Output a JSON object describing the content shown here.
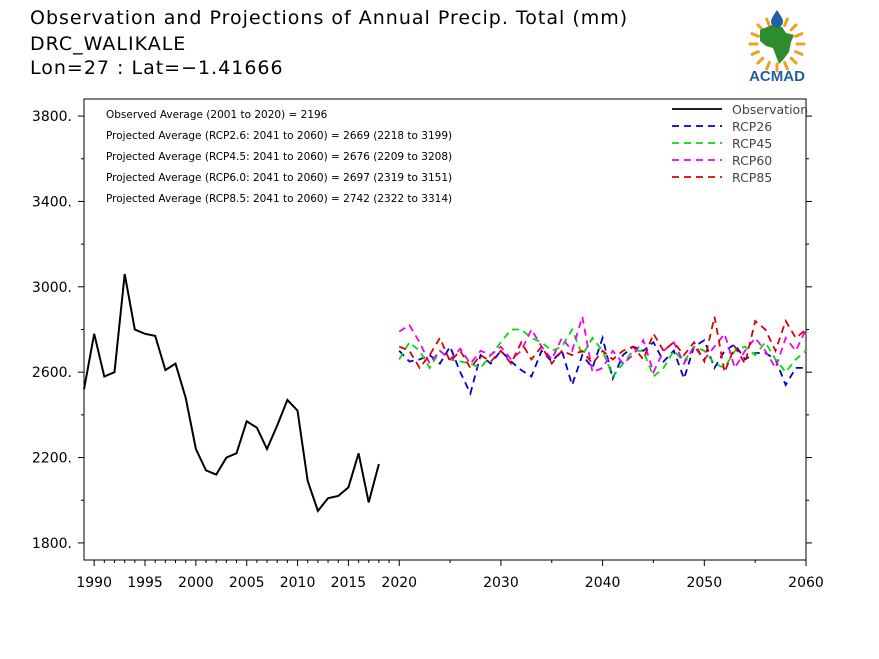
{
  "header": {
    "title": "Observation and Projections of Annual Precip. Total (mm)",
    "location": "DRC_WALIKALE",
    "coords": "Lon=27 : Lat=−1.41666"
  },
  "logo": {
    "text": "ACMAD",
    "icon": "acmad-africa-sun-logo-icon"
  },
  "colors": {
    "observation": "#000000",
    "RCP26": "#0000cc",
    "RCP45": "#00dd00",
    "RCP60": "#ee00ee",
    "RCP85": "#dd0000",
    "logo_orange": "#f0a020",
    "logo_green": "#2e8b2e",
    "logo_blue": "#1f5fa8"
  },
  "chart_data": {
    "type": "line",
    "xlim": [
      1989,
      2060
    ],
    "ylim": [
      1720,
      3880
    ],
    "x_ticks": [
      1990,
      1995,
      2000,
      2005,
      2010,
      2015,
      2020,
      2030,
      2040,
      2050,
      2060
    ],
    "y_ticks": [
      1800,
      2200,
      2600,
      3000,
      3400,
      3800
    ],
    "y_tick_labels": [
      "1800.",
      "2200.",
      "2600.",
      "3000.",
      "3400.",
      "3800."
    ],
    "grid": false,
    "legend_position": "top-right",
    "annotations": [
      "Observed Average (2001 to 2020) = 2196",
      "Projected Average (RCP2.6: 2041 to 2060) = 2669 (2218 to 3199)",
      "Projected Average (RCP4.5: 2041 to 2060) = 2676 (2209 to 3208)",
      "Projected Average (RCP6.0: 2041 to 2060) = 2697 (2319 to 3151)",
      "Projected Average (RCP8.5: 2041 to 2060) = 2742 (2322 to 3314)"
    ],
    "series": [
      {
        "name": "Observation",
        "style": "solid",
        "x": [
          1989,
          1990,
          1991,
          1992,
          1993,
          1994,
          1995,
          1996,
          1997,
          1998,
          1999,
          2000,
          2001,
          2002,
          2003,
          2004,
          2005,
          2006,
          2007,
          2008,
          2009,
          2010,
          2011,
          2012,
          2013,
          2014,
          2015,
          2016,
          2017,
          2018,
          2019
        ],
        "values": [
          2520,
          2780,
          2580,
          2600,
          3060,
          2800,
          2780,
          2770,
          2610,
          2640,
          2480,
          2240,
          2140,
          2120,
          2200,
          2220,
          2370,
          2340,
          2240,
          2350,
          2470,
          2420,
          2090,
          1950,
          2010,
          2020,
          2060,
          2220,
          1990,
          2170,
          null
        ]
      },
      {
        "name": "RCP26",
        "style": "dashed",
        "x": [
          2020,
          2021,
          2022,
          2023,
          2024,
          2025,
          2026,
          2027,
          2028,
          2029,
          2030,
          2031,
          2032,
          2033,
          2034,
          2035,
          2036,
          2037,
          2038,
          2039,
          2040,
          2041,
          2042,
          2043,
          2044,
          2045,
          2046,
          2047,
          2048,
          2049,
          2050,
          2051,
          2052,
          2053,
          2054,
          2055,
          2056,
          2057,
          2058,
          2059,
          2060
        ],
        "values": [
          2700,
          2650,
          2660,
          2680,
          2640,
          2720,
          2600,
          2500,
          2680,
          2640,
          2700,
          2650,
          2610,
          2580,
          2700,
          2650,
          2700,
          2540,
          2680,
          2620,
          2760,
          2570,
          2680,
          2720,
          2700,
          2740,
          2650,
          2700,
          2570,
          2720,
          2750,
          2620,
          2700,
          2730,
          2660,
          2690,
          2690,
          2660,
          2540,
          2620,
          2620
        ]
      },
      {
        "name": "RCP45",
        "style": "dashed",
        "x": [
          2020,
          2021,
          2022,
          2023,
          2024,
          2025,
          2026,
          2027,
          2028,
          2029,
          2030,
          2031,
          2032,
          2033,
          2034,
          2035,
          2036,
          2037,
          2038,
          2039,
          2040,
          2041,
          2042,
          2043,
          2044,
          2045,
          2046,
          2047,
          2048,
          2049,
          2050,
          2051,
          2052,
          2053,
          2054,
          2055,
          2056,
          2057,
          2058,
          2059,
          2060
        ],
        "values": [
          2660,
          2740,
          2700,
          2620,
          2700,
          2660,
          2650,
          2640,
          2620,
          2680,
          2740,
          2800,
          2800,
          2760,
          2740,
          2700,
          2720,
          2800,
          2680,
          2760,
          2700,
          2580,
          2640,
          2700,
          2700,
          2580,
          2620,
          2700,
          2650,
          2720,
          2700,
          2640,
          2620,
          2700,
          2720,
          2680,
          2740,
          2660,
          2600,
          2660,
          2700
        ]
      },
      {
        "name": "RCP60",
        "style": "dashed",
        "x": [
          2020,
          2021,
          2022,
          2023,
          2024,
          2025,
          2026,
          2027,
          2028,
          2029,
          2030,
          2031,
          2032,
          2033,
          2034,
          2035,
          2036,
          2037,
          2038,
          2039,
          2040,
          2041,
          2042,
          2043,
          2044,
          2045,
          2046,
          2047,
          2048,
          2049,
          2050,
          2051,
          2052,
          2053,
          2054,
          2055,
          2056,
          2057,
          2058,
          2059,
          2060
        ],
        "values": [
          2790,
          2820,
          2740,
          2640,
          2700,
          2660,
          2710,
          2640,
          2700,
          2680,
          2720,
          2660,
          2700,
          2800,
          2720,
          2660,
          2760,
          2700,
          2860,
          2600,
          2620,
          2700,
          2640,
          2680,
          2750,
          2600,
          2700,
          2740,
          2640,
          2720,
          2660,
          2720,
          2780,
          2620,
          2700,
          2760,
          2700,
          2620,
          2760,
          2700,
          2800
        ]
      },
      {
        "name": "RCP85",
        "style": "dashed",
        "x": [
          2020,
          2021,
          2022,
          2023,
          2024,
          2025,
          2026,
          2027,
          2028,
          2029,
          2030,
          2031,
          2032,
          2033,
          2034,
          2035,
          2036,
          2037,
          2038,
          2039,
          2040,
          2041,
          2042,
          2043,
          2044,
          2045,
          2046,
          2047,
          2048,
          2049,
          2050,
          2051,
          2052,
          2053,
          2054,
          2055,
          2056,
          2057,
          2058,
          2059,
          2060
        ],
        "values": [
          2720,
          2700,
          2620,
          2680,
          2760,
          2650,
          2700,
          2620,
          2680,
          2650,
          2700,
          2640,
          2740,
          2660,
          2720,
          2640,
          2700,
          2680,
          2700,
          2640,
          2700,
          2660,
          2700,
          2720,
          2660,
          2780,
          2700,
          2740,
          2680,
          2740,
          2650,
          2860,
          2600,
          2720,
          2640,
          2840,
          2800,
          2700,
          2840,
          2760,
          2800
        ]
      }
    ]
  }
}
